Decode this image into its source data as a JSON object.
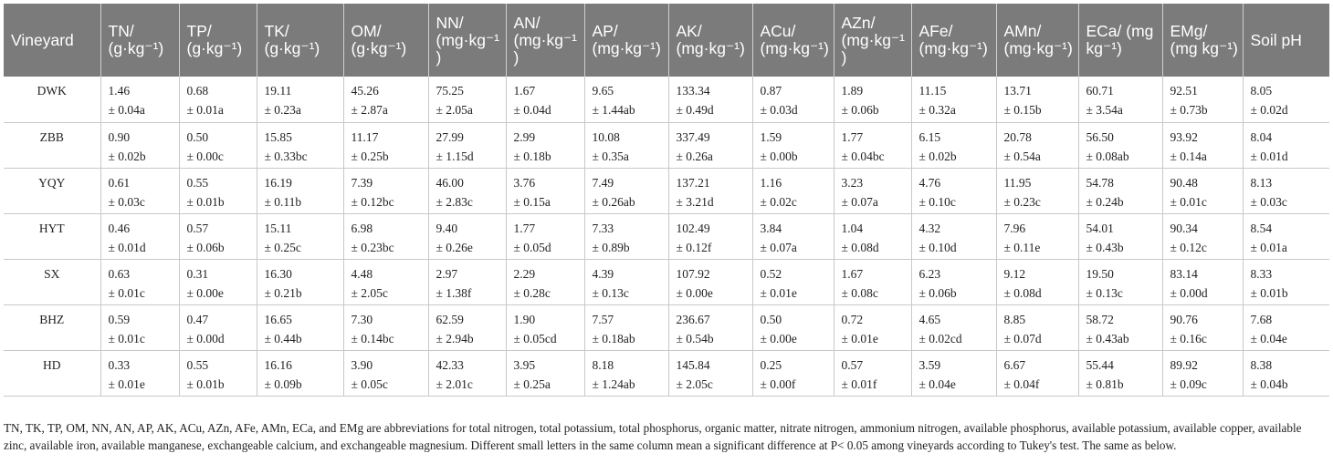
{
  "table": {
    "headers": [
      "Vineyard",
      "TN/ (g·kg⁻¹)",
      "TP/ (g·kg⁻¹)",
      "TK/ (g·kg⁻¹)",
      "OM/ (g·kg⁻¹)",
      "NN/ (mg·kg⁻¹)",
      "AN/ (mg·kg⁻¹)",
      "AP/ (mg·kg⁻¹)",
      "AK/ (mg·kg⁻¹)",
      "ACu/ (mg·kg⁻¹)",
      "AZn/ (mg·kg⁻¹)",
      "AFe/ (mg·kg⁻¹)",
      "AMn/ (mg·kg⁻¹)",
      "ECa/ (mg kg⁻¹)",
      "EMg/ (mg kg⁻¹)",
      "Soil pH"
    ],
    "rows": [
      {
        "name": "DWK",
        "cells": [
          [
            "1.46",
            "± 0.04a"
          ],
          [
            "0.68",
            "± 0.01a"
          ],
          [
            "19.11",
            "± 0.23a"
          ],
          [
            "45.26",
            "± 2.87a"
          ],
          [
            "75.25",
            "± 2.05a"
          ],
          [
            "1.67",
            "± 0.04d"
          ],
          [
            "9.65",
            "± 1.44ab"
          ],
          [
            "133.34",
            "± 0.49d"
          ],
          [
            "0.87",
            "± 0.03d"
          ],
          [
            "1.89",
            "± 0.06b"
          ],
          [
            "11.15",
            "± 0.32a"
          ],
          [
            "13.71",
            "± 0.15b"
          ],
          [
            "60.71",
            "± 3.54a"
          ],
          [
            "92.51",
            "± 0.73b"
          ],
          [
            "8.05",
            "± 0.02d"
          ]
        ]
      },
      {
        "name": "ZBB",
        "cells": [
          [
            "0.90",
            "± 0.02b"
          ],
          [
            "0.50",
            "± 0.00c"
          ],
          [
            "15.85",
            "± 0.33bc"
          ],
          [
            "11.17",
            "± 0.25b"
          ],
          [
            "27.99",
            "± 1.15d"
          ],
          [
            "2.99",
            "± 0.18b"
          ],
          [
            "10.08",
            "± 0.35a"
          ],
          [
            "337.49",
            "± 0.26a"
          ],
          [
            "1.59",
            "± 0.00b"
          ],
          [
            "1.77",
            "± 0.04bc"
          ],
          [
            "6.15",
            "± 0.02b"
          ],
          [
            "20.78",
            "± 0.54a"
          ],
          [
            "56.50",
            "± 0.08ab"
          ],
          [
            "93.92",
            "± 0.14a"
          ],
          [
            "8.04",
            "± 0.01d"
          ]
        ]
      },
      {
        "name": "YQY",
        "cells": [
          [
            "0.61",
            "± 0.03c"
          ],
          [
            "0.55",
            "± 0.01b"
          ],
          [
            "16.19",
            "± 0.11b"
          ],
          [
            "7.39",
            "± 0.12bc"
          ],
          [
            "46.00",
            "± 2.83c"
          ],
          [
            "3.76",
            "± 0.15a"
          ],
          [
            "7.49",
            "± 0.26ab"
          ],
          [
            "137.21",
            "± 3.21d"
          ],
          [
            "1.16",
            "± 0.02c"
          ],
          [
            "3.23",
            "± 0.07a"
          ],
          [
            "4.76",
            "± 0.10c"
          ],
          [
            "11.95",
            "± 0.23c"
          ],
          [
            "54.78",
            "± 0.24b"
          ],
          [
            "90.48",
            "± 0.01c"
          ],
          [
            "8.13",
            "± 0.03c"
          ]
        ]
      },
      {
        "name": "HYT",
        "cells": [
          [
            "0.46",
            "± 0.01d"
          ],
          [
            "0.57",
            "± 0.06b"
          ],
          [
            "15.11",
            "± 0.25c"
          ],
          [
            "6.98",
            "± 0.23bc"
          ],
          [
            "9.40",
            "± 0.26e"
          ],
          [
            "1.77",
            "± 0.05d"
          ],
          [
            "7.33",
            "± 0.89b"
          ],
          [
            "102.49",
            "± 0.12f"
          ],
          [
            "3.84",
            "± 0.07a"
          ],
          [
            "1.04",
            "± 0.08d"
          ],
          [
            "4.32",
            "± 0.10d"
          ],
          [
            "7.96",
            "± 0.11e"
          ],
          [
            "54.01",
            "± 0.43b"
          ],
          [
            "90.34",
            "± 0.12c"
          ],
          [
            "8.54",
            "± 0.01a"
          ]
        ]
      },
      {
        "name": "SX",
        "cells": [
          [
            "0.63",
            "± 0.01c"
          ],
          [
            "0.31",
            "± 0.00e"
          ],
          [
            "16.30",
            "± 0.21b"
          ],
          [
            "4.48",
            "± 2.05c"
          ],
          [
            "2.97",
            "± 1.38f"
          ],
          [
            "2.29",
            "± 0.28c"
          ],
          [
            "4.39",
            "± 0.13c"
          ],
          [
            "107.92",
            "± 0.00e"
          ],
          [
            "0.52",
            "± 0.01e"
          ],
          [
            "1.67",
            "± 0.08c"
          ],
          [
            "6.23",
            "± 0.06b"
          ],
          [
            "9.12",
            "± 0.08d"
          ],
          [
            "19.50",
            "± 0.13c"
          ],
          [
            "83.14",
            "± 0.00d"
          ],
          [
            "8.33",
            "± 0.01b"
          ]
        ]
      },
      {
        "name": "BHZ",
        "cells": [
          [
            "0.59",
            "± 0.01c"
          ],
          [
            "0.47",
            "± 0.00d"
          ],
          [
            "16.65",
            "± 0.44b"
          ],
          [
            "7.30",
            "± 0.14bc"
          ],
          [
            "62.59",
            "± 2.94b"
          ],
          [
            "1.90",
            "± 0.05cd"
          ],
          [
            "7.57",
            "± 0.18ab"
          ],
          [
            "236.67",
            "± 0.54b"
          ],
          [
            "0.50",
            "± 0.00e"
          ],
          [
            "0.72",
            "± 0.01e"
          ],
          [
            "4.65",
            "± 0.02cd"
          ],
          [
            "8.85",
            "± 0.07d"
          ],
          [
            "58.72",
            "± 0.43ab"
          ],
          [
            "90.76",
            "± 0.16c"
          ],
          [
            "7.68",
            "± 0.04e"
          ]
        ]
      },
      {
        "name": "HD",
        "cells": [
          [
            "0.33",
            "± 0.01e"
          ],
          [
            "0.55",
            "± 0.01b"
          ],
          [
            "16.16",
            "± 0.09b"
          ],
          [
            "3.90",
            "± 0.05c"
          ],
          [
            "42.33",
            "± 2.01c"
          ],
          [
            "3.95",
            "± 0.25a"
          ],
          [
            "8.18",
            "± 1.24ab"
          ],
          [
            "145.84",
            "± 2.05c"
          ],
          [
            "0.25",
            "± 0.00f"
          ],
          [
            "0.57",
            "± 0.01f"
          ],
          [
            "3.59",
            "± 0.04e"
          ],
          [
            "6.67",
            "± 0.04f"
          ],
          [
            "55.44",
            "± 0.81b"
          ],
          [
            "89.92",
            "± 0.09c"
          ],
          [
            "8.38",
            "± 0.04b"
          ]
        ]
      }
    ]
  },
  "footnote": "TN, TK, TP, OM, NN, AN, AP, AK, ACu, AZn, AFe, AMn, ECa, and EMg are abbreviations for total nitrogen, total potassium, total phosphorus, organic matter, nitrate nitrogen, ammonium nitrogen, available phosphorus, available potassium, available copper, available zinc, available iron, available manganese, exchangeable calcium, and exchangeable magnesium. Different small letters in the same column mean a significant difference at P< 0.05 among vineyards according to Tukey's test. The same as below."
}
